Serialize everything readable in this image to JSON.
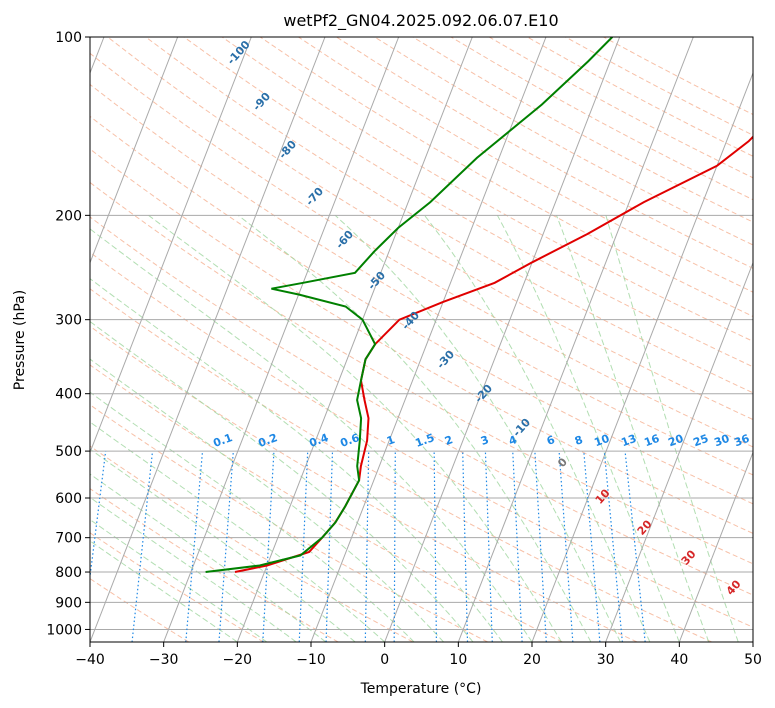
{
  "chart_data": {
    "type": "line",
    "title": "wetPf2_GN04.2025.092.06.07.E10",
    "xlabel": "Temperature (°C)",
    "ylabel": "Pressure (hPa)",
    "xlim": [
      -40,
      50
    ],
    "ylim": [
      1050,
      100
    ],
    "y_scale": "log",
    "grid": true,
    "x_ticks": [
      -40,
      -30,
      -20,
      -10,
      0,
      10,
      20,
      30,
      40,
      50
    ],
    "y_ticks": [
      100,
      200,
      300,
      400,
      500,
      600,
      700,
      800,
      900,
      1000
    ],
    "colors": {
      "temperature": "#e00000",
      "dewpoint": "#008000",
      "isotherm": "#aaaaaa",
      "dry_adiabat": "#f4a582",
      "moist_adiabat": "#9fd69f",
      "mixing_ratio": "#1e88e5",
      "isotherm_label": "#2a6fa8",
      "dry_label": "#d62728"
    },
    "series": [
      {
        "values": [
          [
            -24,
            800
          ],
          [
            -20,
            780
          ],
          [
            -15,
            740
          ],
          [
            -14,
            700
          ],
          [
            -13,
            660
          ],
          [
            -12.5,
            620
          ],
          [
            -12,
            560
          ],
          [
            -12.5,
            530
          ],
          [
            -13,
            480
          ],
          [
            -14,
            440
          ],
          [
            -15.5,
            410
          ],
          [
            -17,
            380
          ],
          [
            -17.5,
            350
          ],
          [
            -17,
            330
          ],
          [
            -15,
            300
          ],
          [
            -10,
            280
          ],
          [
            -4,
            260
          ],
          [
            0,
            240
          ],
          [
            6,
            215
          ],
          [
            12,
            190
          ],
          [
            20,
            165
          ],
          [
            23,
            150
          ],
          [
            26,
            130
          ],
          [
            30,
            110
          ],
          [
            32,
            100
          ]
        ]
      },
      {
        "values": [
          [
            -28,
            800
          ],
          [
            -21,
            780
          ],
          [
            -16,
            750
          ],
          [
            -14,
            700
          ],
          [
            -13,
            660
          ],
          [
            -12.5,
            620
          ],
          [
            -12,
            560
          ],
          [
            -13,
            530
          ],
          [
            -14,
            480
          ],
          [
            -15,
            440
          ],
          [
            -16.5,
            410
          ],
          [
            -17,
            380
          ],
          [
            -17.5,
            350
          ],
          [
            -17,
            330
          ],
          [
            -20,
            300
          ],
          [
            -23,
            285
          ],
          [
            -30,
            272
          ],
          [
            -34,
            266
          ],
          [
            -30,
            260
          ],
          [
            -23.5,
            250
          ],
          [
            -22,
            230
          ],
          [
            -20,
            210
          ],
          [
            -17,
            190
          ],
          [
            -13,
            160
          ],
          [
            -7,
            130
          ],
          [
            -3,
            110
          ],
          [
            -1,
            100
          ]
        ]
      }
    ],
    "isotherm_labels": [
      "-100",
      "-90",
      "-80",
      "-70",
      "-60",
      "-50",
      "-40",
      "-30",
      "-20",
      "-10",
      "0",
      "10",
      "20",
      "30",
      "40"
    ],
    "mixing_ratio_labels": [
      "0.1",
      "0.2",
      "0.4",
      "0.6",
      "1",
      "1.5",
      "2",
      "3",
      "4",
      "6",
      "8",
      "10",
      "13",
      "16",
      "20",
      "25",
      "30",
      "36"
    ]
  }
}
